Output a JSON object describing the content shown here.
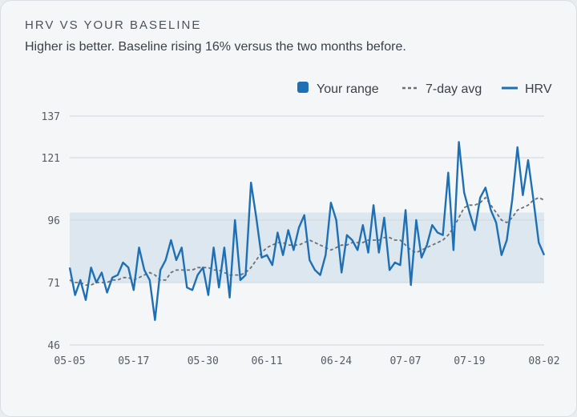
{
  "header": {
    "title": "HRV VS YOUR BASELINE",
    "subtitle": "Higher is better. Baseline rising 16% versus the two months before."
  },
  "legend": {
    "range_label": "Your range",
    "avg_label": "7-day avg",
    "hrv_label": "HRV"
  },
  "colors": {
    "hrv": "#1f6fb5",
    "avg": "#6b7178",
    "range_fill": "#dde7f0",
    "grid": "#cfd5db"
  },
  "chart_data": {
    "type": "line",
    "title": "HRV VS YOUR BASELINE",
    "x_start": "2024-05-05",
    "x_end": "2024-08-02",
    "x_ticks": [
      "05-05",
      "05-17",
      "05-30",
      "06-11",
      "06-24",
      "07-07",
      "07-19",
      "08-02"
    ],
    "y_ticks": [
      46,
      71,
      96,
      121,
      137
    ],
    "ylim": [
      46,
      137
    ],
    "band": {
      "name": "Your range",
      "low": 71,
      "high": 99
    },
    "legend_position": "top-right",
    "grid": "horizontal",
    "series": [
      {
        "name": "HRV",
        "style": "solid",
        "values": [
          77,
          66,
          72,
          64,
          77,
          71,
          75,
          67,
          73,
          74,
          79,
          77,
          68,
          85,
          76,
          72,
          56,
          76,
          80,
          88,
          80,
          85,
          69,
          68,
          74,
          77,
          66,
          85,
          69,
          85,
          65,
          96,
          72,
          74,
          111,
          97,
          81,
          82,
          78,
          91,
          82,
          92,
          84,
          93,
          98,
          80,
          76,
          74,
          82,
          103,
          96,
          75,
          90,
          88,
          84,
          94,
          83,
          102,
          83,
          97,
          76,
          79,
          78,
          100,
          70,
          96,
          81,
          86,
          94,
          91,
          90,
          115,
          84,
          127,
          107,
          99,
          92,
          105,
          109,
          100,
          95,
          82,
          88,
          104,
          125,
          106,
          120,
          104,
          87,
          82
        ]
      },
      {
        "name": "7-day avg",
        "style": "dashed",
        "values": [
          72,
          71,
          71,
          70,
          70,
          71,
          71,
          71,
          72,
          72,
          73,
          73,
          72,
          73,
          74,
          75,
          74,
          72,
          72,
          75,
          76,
          76,
          76,
          76,
          77,
          77,
          77,
          76,
          76,
          75,
          74,
          74,
          74,
          75,
          77,
          80,
          83,
          85,
          86,
          87,
          87,
          86,
          86,
          86,
          87,
          88,
          87,
          86,
          85,
          84,
          85,
          86,
          86,
          87,
          87,
          87,
          88,
          88,
          88,
          89,
          89,
          88,
          88,
          86,
          84,
          83,
          84,
          85,
          86,
          87,
          88,
          90,
          93,
          97,
          101,
          102,
          102,
          103,
          105,
          102,
          99,
          96,
          95,
          97,
          100,
          101,
          102,
          104,
          105,
          104
        ]
      }
    ]
  }
}
